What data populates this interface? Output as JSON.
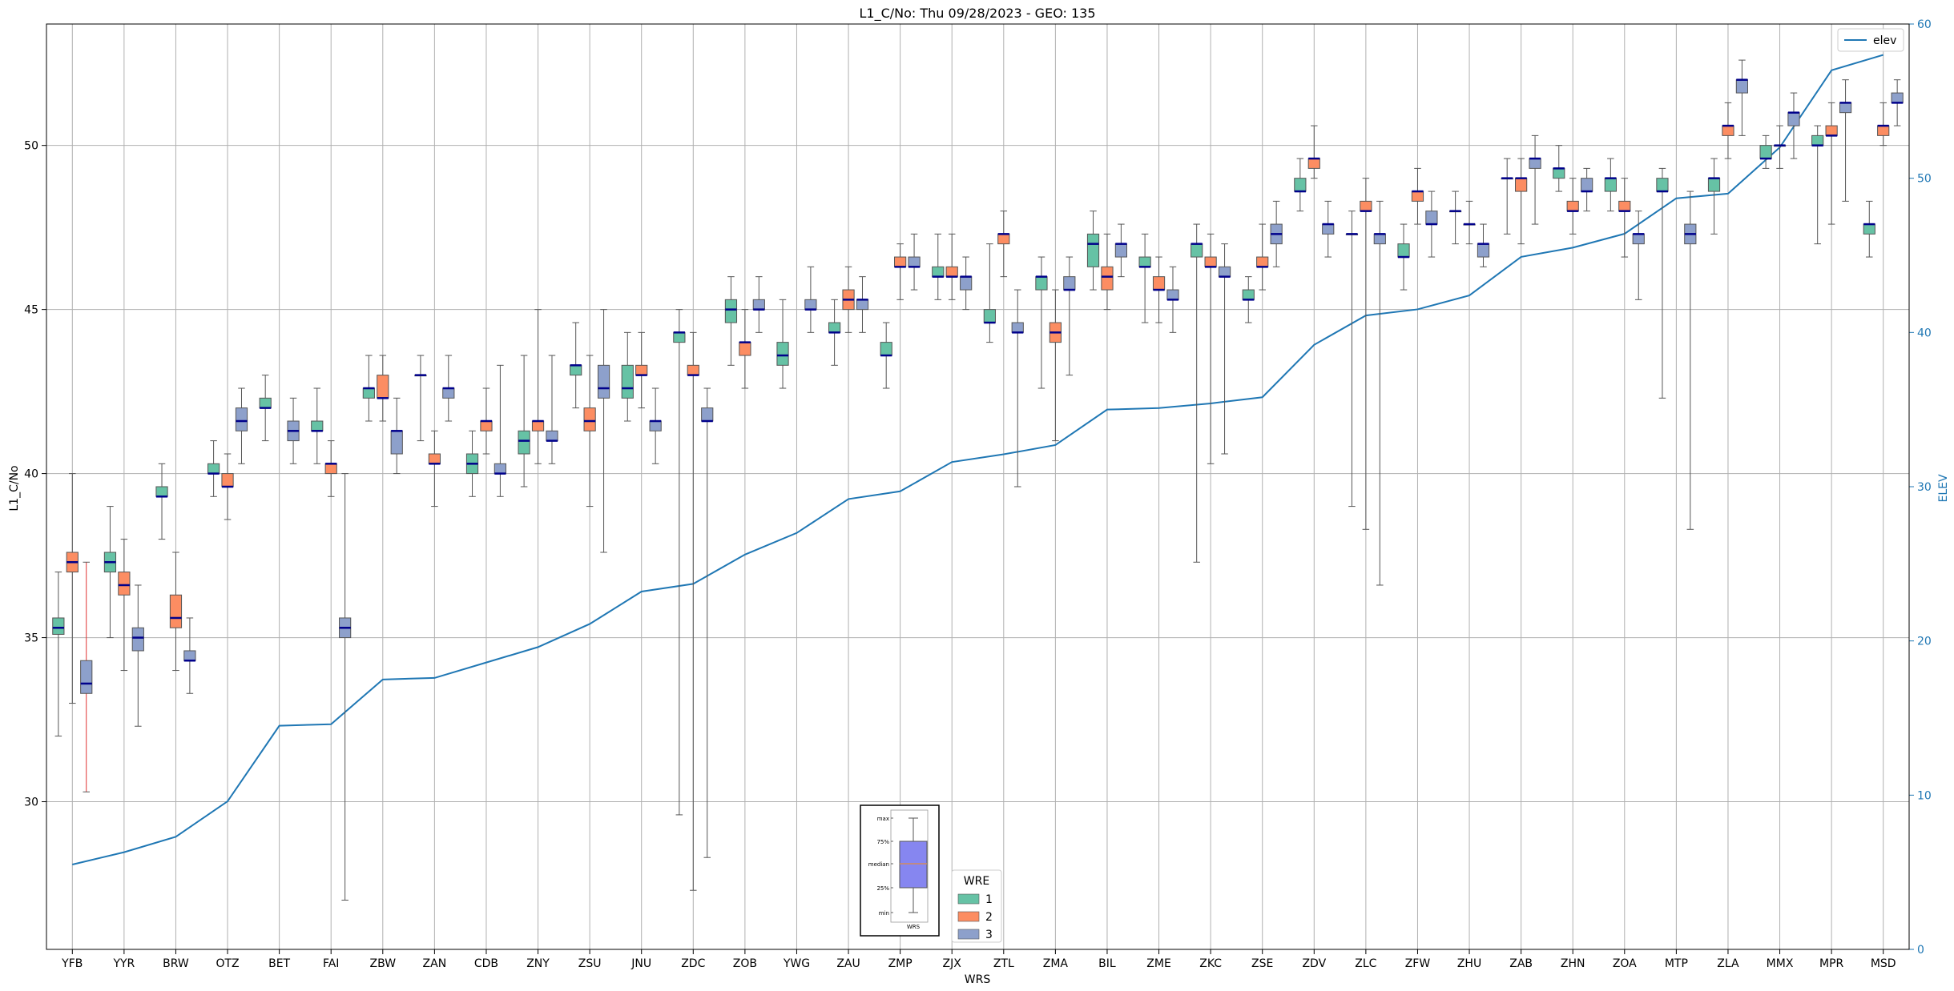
{
  "chart_data": {
    "type": "box",
    "title": "L1_C/No: Thu 09/28/2023 - GEO: 135",
    "xlabel": "WRS",
    "ylabel": "L1_C/No",
    "ylabel_right": "ELEV",
    "ylim": [
      25.5,
      53.7
    ],
    "ylim_right": [
      0,
      60
    ],
    "yticks": [
      30,
      35,
      40,
      45,
      50
    ],
    "yticks_right": [
      0,
      10,
      20,
      30,
      40,
      50,
      60
    ],
    "grid": true,
    "categories": [
      "YFB",
      "YYR",
      "BRW",
      "OTZ",
      "BET",
      "FAI",
      "ZBW",
      "ZAN",
      "CDB",
      "ZNY",
      "ZSU",
      "JNU",
      "ZDC",
      "ZOB",
      "YWG",
      "ZAU",
      "ZMP",
      "ZJX",
      "ZTL",
      "ZMA",
      "BIL",
      "ZME",
      "ZKC",
      "ZSE",
      "ZDV",
      "ZLC",
      "ZFW",
      "ZHU",
      "ZAB",
      "ZHN",
      "ZOA",
      "MTP",
      "ZLA",
      "MMX",
      "MPR",
      "MSD"
    ],
    "elev": {
      "name": "elev",
      "values": [
        5.5,
        6.3,
        7.3,
        9.6,
        14.5,
        14.6,
        17.5,
        17.6,
        18.6,
        19.6,
        21.1,
        23.2,
        23.7,
        25.6,
        27.0,
        29.2,
        29.7,
        31.6,
        32.1,
        32.7,
        35.0,
        35.1,
        35.4,
        35.8,
        39.2,
        41.1,
        41.5,
        42.4,
        44.9,
        45.5,
        46.4,
        48.7,
        49.0,
        52.0,
        57.0,
        58.0
      ]
    },
    "wre_colors": {
      "1": "#66c2a5",
      "2": "#fc8d62",
      "3": "#8da0cb"
    },
    "legend": {
      "title": "WRE",
      "entries": [
        "1",
        "2",
        "3"
      ],
      "placement": "lower-center"
    },
    "legend_elev": {
      "entries": [
        "elev"
      ],
      "placement": "upper-right"
    },
    "boxes": [
      {
        "cat": "YFB",
        "wre": "1",
        "min": 32.0,
        "q1": 35.1,
        "median": 35.3,
        "q3": 35.6,
        "max": 37.0
      },
      {
        "cat": "YFB",
        "wre": "2",
        "min": 33.0,
        "q1": 37.0,
        "median": 37.3,
        "q3": 37.6,
        "max": 40.0
      },
      {
        "cat": "YFB",
        "wre": "3",
        "min": 30.3,
        "q1": 33.3,
        "median": 33.6,
        "q3": 34.3,
        "max": 37.3
      },
      {
        "cat": "YYR",
        "wre": "1",
        "min": 35.0,
        "q1": 37.0,
        "median": 37.3,
        "q3": 37.6,
        "max": 39.0
      },
      {
        "cat": "YYR",
        "wre": "2",
        "min": 34.0,
        "q1": 36.3,
        "median": 36.6,
        "q3": 37.0,
        "max": 38.0
      },
      {
        "cat": "YYR",
        "wre": "3",
        "min": 32.3,
        "q1": 34.6,
        "median": 35.0,
        "q3": 35.3,
        "max": 36.6
      },
      {
        "cat": "BRW",
        "wre": "1",
        "min": 38.0,
        "q1": 39.3,
        "median": 39.3,
        "q3": 39.6,
        "max": 40.3
      },
      {
        "cat": "BRW",
        "wre": "2",
        "min": 34.0,
        "q1": 35.3,
        "median": 35.6,
        "q3": 36.3,
        "max": 37.6
      },
      {
        "cat": "BRW",
        "wre": "3",
        "min": 33.3,
        "q1": 34.3,
        "median": 34.3,
        "q3": 34.6,
        "max": 35.6
      },
      {
        "cat": "OTZ",
        "wre": "1",
        "min": 39.3,
        "q1": 40.0,
        "median": 40.0,
        "q3": 40.3,
        "max": 41.0
      },
      {
        "cat": "OTZ",
        "wre": "2",
        "min": 38.6,
        "q1": 39.6,
        "median": 39.6,
        "q3": 40.0,
        "max": 40.6
      },
      {
        "cat": "OTZ",
        "wre": "3",
        "min": 40.3,
        "q1": 41.3,
        "median": 41.6,
        "q3": 42.0,
        "max": 42.6
      },
      {
        "cat": "BET",
        "wre": "1",
        "min": 41.0,
        "q1": 42.0,
        "median": 42.0,
        "q3": 42.3,
        "max": 43.0
      },
      {
        "cat": "BET",
        "wre": "3",
        "min": 40.3,
        "q1": 41.0,
        "median": 41.3,
        "q3": 41.6,
        "max": 42.3
      },
      {
        "cat": "FAI",
        "wre": "1",
        "min": 40.3,
        "q1": 41.3,
        "median": 41.3,
        "q3": 41.6,
        "max": 42.6
      },
      {
        "cat": "FAI",
        "wre": "2",
        "min": 39.3,
        "q1": 40.0,
        "median": 40.3,
        "q3": 40.3,
        "max": 41.0
      },
      {
        "cat": "FAI",
        "wre": "3",
        "min": 27.0,
        "q1": 35.0,
        "median": 35.3,
        "q3": 35.6,
        "max": 40.0
      },
      {
        "cat": "ZBW",
        "wre": "1",
        "min": 41.6,
        "q1": 42.3,
        "median": 42.6,
        "q3": 42.6,
        "max": 43.6
      },
      {
        "cat": "ZBW",
        "wre": "2",
        "min": 41.6,
        "q1": 42.3,
        "median": 42.3,
        "q3": 43.0,
        "max": 43.6
      },
      {
        "cat": "ZBW",
        "wre": "3",
        "min": 40.0,
        "q1": 40.6,
        "median": 41.3,
        "q3": 41.3,
        "max": 42.3
      },
      {
        "cat": "ZAN",
        "wre": "1",
        "min": 41.0,
        "q1": 43.0,
        "median": 43.0,
        "q3": 43.0,
        "max": 43.6
      },
      {
        "cat": "ZAN",
        "wre": "2",
        "min": 39.0,
        "q1": 40.3,
        "median": 40.3,
        "q3": 40.6,
        "max": 41.3
      },
      {
        "cat": "ZAN",
        "wre": "3",
        "min": 41.6,
        "q1": 42.3,
        "median": 42.6,
        "q3": 42.6,
        "max": 43.6
      },
      {
        "cat": "CDB",
        "wre": "1",
        "min": 39.3,
        "q1": 40.0,
        "median": 40.3,
        "q3": 40.6,
        "max": 41.3
      },
      {
        "cat": "CDB",
        "wre": "2",
        "min": 40.6,
        "q1": 41.3,
        "median": 41.6,
        "q3": 41.6,
        "max": 42.6
      },
      {
        "cat": "CDB",
        "wre": "3",
        "min": 39.3,
        "q1": 40.0,
        "median": 40.0,
        "q3": 40.3,
        "max": 43.3
      },
      {
        "cat": "ZNY",
        "wre": "1",
        "min": 39.6,
        "q1": 40.6,
        "median": 41.0,
        "q3": 41.3,
        "max": 43.6
      },
      {
        "cat": "ZNY",
        "wre": "2",
        "min": 40.3,
        "q1": 41.3,
        "median": 41.6,
        "q3": 41.6,
        "max": 45.0
      },
      {
        "cat": "ZNY",
        "wre": "3",
        "min": 40.3,
        "q1": 41.0,
        "median": 41.0,
        "q3": 41.3,
        "max": 43.6
      },
      {
        "cat": "ZSU",
        "wre": "1",
        "min": 42.0,
        "q1": 43.0,
        "median": 43.3,
        "q3": 43.3,
        "max": 44.6
      },
      {
        "cat": "ZSU",
        "wre": "2",
        "min": 39.0,
        "q1": 41.3,
        "median": 41.6,
        "q3": 42.0,
        "max": 43.6
      },
      {
        "cat": "ZSU",
        "wre": "3",
        "min": 37.6,
        "q1": 42.3,
        "median": 42.6,
        "q3": 43.3,
        "max": 45.0
      },
      {
        "cat": "JNU",
        "wre": "1",
        "min": 41.6,
        "q1": 42.3,
        "median": 42.6,
        "q3": 43.3,
        "max": 44.3
      },
      {
        "cat": "JNU",
        "wre": "2",
        "min": 42.0,
        "q1": 43.0,
        "median": 43.0,
        "q3": 43.3,
        "max": 44.3
      },
      {
        "cat": "JNU",
        "wre": "3",
        "min": 40.3,
        "q1": 41.3,
        "median": 41.6,
        "q3": 41.6,
        "max": 42.6
      },
      {
        "cat": "ZDC",
        "wre": "1",
        "min": 29.6,
        "q1": 44.0,
        "median": 44.3,
        "q3": 44.3,
        "max": 45.0
      },
      {
        "cat": "ZDC",
        "wre": "2",
        "min": 27.3,
        "q1": 43.0,
        "median": 43.0,
        "q3": 43.3,
        "max": 44.3
      },
      {
        "cat": "ZDC",
        "wre": "3",
        "min": 28.3,
        "q1": 41.6,
        "median": 41.6,
        "q3": 42.0,
        "max": 42.6
      },
      {
        "cat": "ZOB",
        "wre": "1",
        "min": 43.3,
        "q1": 44.6,
        "median": 45.0,
        "q3": 45.3,
        "max": 46.0
      },
      {
        "cat": "ZOB",
        "wre": "2",
        "min": 42.6,
        "q1": 43.6,
        "median": 44.0,
        "q3": 44.0,
        "max": 45.0
      },
      {
        "cat": "ZOB",
        "wre": "3",
        "min": 44.3,
        "q1": 45.0,
        "median": 45.0,
        "q3": 45.3,
        "max": 46.0
      },
      {
        "cat": "YWG",
        "wre": "1",
        "min": 42.6,
        "q1": 43.3,
        "median": 43.6,
        "q3": 44.0,
        "max": 45.3
      },
      {
        "cat": "YWG",
        "wre": "3",
        "min": 44.3,
        "q1": 45.0,
        "median": 45.0,
        "q3": 45.3,
        "max": 46.3
      },
      {
        "cat": "ZAU",
        "wre": "1",
        "min": 43.3,
        "q1": 44.3,
        "median": 44.3,
        "q3": 44.6,
        "max": 45.3
      },
      {
        "cat": "ZAU",
        "wre": "2",
        "min": 44.3,
        "q1": 45.0,
        "median": 45.3,
        "q3": 45.6,
        "max": 46.3
      },
      {
        "cat": "ZAU",
        "wre": "3",
        "min": 44.3,
        "q1": 45.0,
        "median": 45.3,
        "q3": 45.3,
        "max": 46.0
      },
      {
        "cat": "ZMP",
        "wre": "1",
        "min": 42.6,
        "q1": 43.6,
        "median": 43.6,
        "q3": 44.0,
        "max": 44.6
      },
      {
        "cat": "ZMP",
        "wre": "2",
        "min": 45.3,
        "q1": 46.3,
        "median": 46.3,
        "q3": 46.6,
        "max": 47.0
      },
      {
        "cat": "ZMP",
        "wre": "3",
        "min": 45.6,
        "q1": 46.3,
        "median": 46.3,
        "q3": 46.6,
        "max": 47.3
      },
      {
        "cat": "ZJX",
        "wre": "1",
        "min": 45.3,
        "q1": 46.0,
        "median": 46.0,
        "q3": 46.3,
        "max": 47.3
      },
      {
        "cat": "ZJX",
        "wre": "2",
        "min": 45.3,
        "q1": 46.0,
        "median": 46.0,
        "q3": 46.3,
        "max": 47.3
      },
      {
        "cat": "ZJX",
        "wre": "3",
        "min": 45.0,
        "q1": 45.6,
        "median": 46.0,
        "q3": 46.0,
        "max": 46.6
      },
      {
        "cat": "ZTL",
        "wre": "1",
        "min": 44.0,
        "q1": 44.6,
        "median": 44.6,
        "q3": 45.0,
        "max": 47.0
      },
      {
        "cat": "ZTL",
        "wre": "2",
        "min": 46.0,
        "q1": 47.0,
        "median": 47.3,
        "q3": 47.3,
        "max": 48.0
      },
      {
        "cat": "ZTL",
        "wre": "3",
        "min": 39.6,
        "q1": 44.3,
        "median": 44.3,
        "q3": 44.6,
        "max": 45.6
      },
      {
        "cat": "ZMA",
        "wre": "1",
        "min": 42.6,
        "q1": 45.6,
        "median": 46.0,
        "q3": 46.0,
        "max": 46.6
      },
      {
        "cat": "ZMA",
        "wre": "2",
        "min": 41.0,
        "q1": 44.0,
        "median": 44.3,
        "q3": 44.6,
        "max": 45.6
      },
      {
        "cat": "ZMA",
        "wre": "3",
        "min": 43.0,
        "q1": 45.6,
        "median": 45.6,
        "q3": 46.0,
        "max": 46.6
      },
      {
        "cat": "BIL",
        "wre": "1",
        "min": 45.6,
        "q1": 46.3,
        "median": 47.0,
        "q3": 47.3,
        "max": 48.0
      },
      {
        "cat": "BIL",
        "wre": "2",
        "min": 45.0,
        "q1": 45.6,
        "median": 46.0,
        "q3": 46.3,
        "max": 47.3
      },
      {
        "cat": "BIL",
        "wre": "3",
        "min": 46.0,
        "q1": 46.6,
        "median": 47.0,
        "q3": 47.0,
        "max": 47.6
      },
      {
        "cat": "ZME",
        "wre": "1",
        "min": 44.6,
        "q1": 46.3,
        "median": 46.3,
        "q3": 46.6,
        "max": 47.3
      },
      {
        "cat": "ZME",
        "wre": "2",
        "min": 44.6,
        "q1": 45.6,
        "median": 45.6,
        "q3": 46.0,
        "max": 46.6
      },
      {
        "cat": "ZME",
        "wre": "3",
        "min": 44.3,
        "q1": 45.3,
        "median": 45.3,
        "q3": 45.6,
        "max": 46.3
      },
      {
        "cat": "ZKC",
        "wre": "1",
        "min": 37.3,
        "q1": 46.6,
        "median": 47.0,
        "q3": 47.0,
        "max": 47.6
      },
      {
        "cat": "ZKC",
        "wre": "2",
        "min": 40.3,
        "q1": 46.3,
        "median": 46.3,
        "q3": 46.6,
        "max": 47.3
      },
      {
        "cat": "ZKC",
        "wre": "3",
        "min": 40.6,
        "q1": 46.0,
        "median": 46.0,
        "q3": 46.3,
        "max": 47.0
      },
      {
        "cat": "ZSE",
        "wre": "1",
        "min": 44.6,
        "q1": 45.3,
        "median": 45.3,
        "q3": 45.6,
        "max": 46.0
      },
      {
        "cat": "ZSE",
        "wre": "2",
        "min": 45.6,
        "q1": 46.3,
        "median": 46.3,
        "q3": 46.6,
        "max": 47.6
      },
      {
        "cat": "ZSE",
        "wre": "3",
        "min": 46.3,
        "q1": 47.0,
        "median": 47.3,
        "q3": 47.6,
        "max": 48.3
      },
      {
        "cat": "ZDV",
        "wre": "1",
        "min": 48.0,
        "q1": 48.6,
        "median": 48.6,
        "q3": 49.0,
        "max": 49.6
      },
      {
        "cat": "ZDV",
        "wre": "2",
        "min": 49.0,
        "q1": 49.3,
        "median": 49.6,
        "q3": 49.6,
        "max": 50.6
      },
      {
        "cat": "ZDV",
        "wre": "3",
        "min": 46.6,
        "q1": 47.3,
        "median": 47.6,
        "q3": 47.6,
        "max": 48.3
      },
      {
        "cat": "ZLC",
        "wre": "1",
        "min": 39.0,
        "q1": 47.3,
        "median": 47.3,
        "q3": 47.3,
        "max": 48.0
      },
      {
        "cat": "ZLC",
        "wre": "2",
        "min": 38.3,
        "q1": 48.0,
        "median": 48.0,
        "q3": 48.3,
        "max": 49.0
      },
      {
        "cat": "ZLC",
        "wre": "3",
        "min": 36.6,
        "q1": 47.0,
        "median": 47.3,
        "q3": 47.3,
        "max": 48.3
      },
      {
        "cat": "ZFW",
        "wre": "1",
        "min": 45.6,
        "q1": 46.6,
        "median": 46.6,
        "q3": 47.0,
        "max": 47.6
      },
      {
        "cat": "ZFW",
        "wre": "2",
        "min": 47.6,
        "q1": 48.3,
        "median": 48.6,
        "q3": 48.6,
        "max": 49.3
      },
      {
        "cat": "ZFW",
        "wre": "3",
        "min": 46.6,
        "q1": 47.6,
        "median": 47.6,
        "q3": 48.0,
        "max": 48.6
      },
      {
        "cat": "ZHU",
        "wre": "1",
        "min": 47.0,
        "q1": 48.0,
        "median": 48.0,
        "q3": 48.0,
        "max": 48.6
      },
      {
        "cat": "ZHU",
        "wre": "2",
        "min": 47.0,
        "q1": 47.6,
        "median": 47.6,
        "q3": 47.6,
        "max": 48.3
      },
      {
        "cat": "ZHU",
        "wre": "3",
        "min": 46.3,
        "q1": 46.6,
        "median": 47.0,
        "q3": 47.0,
        "max": 47.6
      },
      {
        "cat": "ZAB",
        "wre": "1",
        "min": 47.3,
        "q1": 49.0,
        "median": 49.0,
        "q3": 49.0,
        "max": 49.6
      },
      {
        "cat": "ZAB",
        "wre": "2",
        "min": 47.0,
        "q1": 48.6,
        "median": 49.0,
        "q3": 49.0,
        "max": 49.6
      },
      {
        "cat": "ZAB",
        "wre": "3",
        "min": 47.6,
        "q1": 49.3,
        "median": 49.6,
        "q3": 49.6,
        "max": 50.3
      },
      {
        "cat": "ZHN",
        "wre": "1",
        "min": 48.6,
        "q1": 49.0,
        "median": 49.3,
        "q3": 49.3,
        "max": 50.0
      },
      {
        "cat": "ZHN",
        "wre": "2",
        "min": 47.3,
        "q1": 48.0,
        "median": 48.0,
        "q3": 48.3,
        "max": 49.0
      },
      {
        "cat": "ZHN",
        "wre": "3",
        "min": 48.0,
        "q1": 48.6,
        "median": 48.6,
        "q3": 49.0,
        "max": 49.3
      },
      {
        "cat": "ZOA",
        "wre": "1",
        "min": 48.0,
        "q1": 48.6,
        "median": 49.0,
        "q3": 49.0,
        "max": 49.6
      },
      {
        "cat": "ZOA",
        "wre": "2",
        "min": 46.6,
        "q1": 48.0,
        "median": 48.0,
        "q3": 48.3,
        "max": 49.0
      },
      {
        "cat": "ZOA",
        "wre": "3",
        "min": 45.3,
        "q1": 47.0,
        "median": 47.3,
        "q3": 47.3,
        "max": 48.0
      },
      {
        "cat": "MTP",
        "wre": "1",
        "min": 42.3,
        "q1": 48.6,
        "median": 48.6,
        "q3": 49.0,
        "max": 49.3
      },
      {
        "cat": "MTP",
        "wre": "3",
        "min": 38.3,
        "q1": 47.0,
        "median": 47.3,
        "q3": 47.6,
        "max": 48.6
      },
      {
        "cat": "ZLA",
        "wre": "1",
        "min": 47.3,
        "q1": 48.6,
        "median": 49.0,
        "q3": 49.0,
        "max": 49.6
      },
      {
        "cat": "ZLA",
        "wre": "2",
        "min": 49.6,
        "q1": 50.3,
        "median": 50.6,
        "q3": 50.6,
        "max": 51.3
      },
      {
        "cat": "ZLA",
        "wre": "3",
        "min": 50.3,
        "q1": 51.6,
        "median": 52.0,
        "q3": 52.0,
        "max": 52.6
      },
      {
        "cat": "MMX",
        "wre": "1",
        "min": 49.3,
        "q1": 49.6,
        "median": 49.6,
        "q3": 50.0,
        "max": 50.3
      },
      {
        "cat": "MMX",
        "wre": "2",
        "min": 49.3,
        "q1": 50.0,
        "median": 50.0,
        "q3": 50.0,
        "max": 50.6
      },
      {
        "cat": "MMX",
        "wre": "3",
        "min": 49.6,
        "q1": 50.6,
        "median": 51.0,
        "q3": 51.0,
        "max": 51.6
      },
      {
        "cat": "MPR",
        "wre": "1",
        "min": 47.0,
        "q1": 50.0,
        "median": 50.0,
        "q3": 50.3,
        "max": 50.6
      },
      {
        "cat": "MPR",
        "wre": "2",
        "min": 47.6,
        "q1": 50.3,
        "median": 50.3,
        "q3": 50.6,
        "max": 51.3
      },
      {
        "cat": "MPR",
        "wre": "3",
        "min": 48.3,
        "q1": 51.0,
        "median": 51.3,
        "q3": 51.3,
        "max": 52.0
      },
      {
        "cat": "MSD",
        "wre": "1",
        "min": 46.6,
        "q1": 47.3,
        "median": 47.6,
        "q3": 47.6,
        "max": 48.3
      },
      {
        "cat": "MSD",
        "wre": "2",
        "min": 50.0,
        "q1": 50.3,
        "median": 50.6,
        "q3": 50.6,
        "max": 51.3
      },
      {
        "cat": "MSD",
        "wre": "3",
        "min": 50.6,
        "q1": 51.3,
        "median": 51.3,
        "q3": 51.6,
        "max": 52.0
      }
    ],
    "inset_key": {
      "labels": [
        "max",
        "75%",
        "median",
        "25%",
        "min"
      ],
      "caption": "WRS",
      "color": "#8686f0"
    }
  }
}
